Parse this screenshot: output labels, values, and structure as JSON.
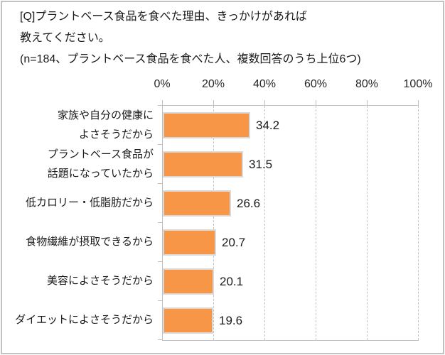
{
  "title": {
    "line1": "[Q]プラントベース食品を食べた理由、きっかけがあれば",
    "line2": "教えてください。",
    "note": "(n=184、プラントベース食品を食べた人、複数回答のうち上位6つ)"
  },
  "chart_data": {
    "type": "bar",
    "orientation": "horizontal",
    "title": "",
    "xlabel": "",
    "ylabel": "",
    "x_axis": {
      "tick_labels": [
        "0%",
        "20%",
        "40%",
        "60%",
        "80%",
        "100%"
      ],
      "min": 0,
      "max": 100,
      "gridlines": "dashed-vertical",
      "position": "top"
    },
    "categories": [
      [
        "家族や自分の健康に",
        "よさそうだから"
      ],
      [
        "プラントベース食品が",
        "話題になっていたから"
      ],
      [
        "低カロリー・低脂肪だから"
      ],
      [
        "食物繊維が摂取できるから"
      ],
      [
        "美容によさそうだから"
      ],
      [
        "ダイエットによさそうだから"
      ]
    ],
    "values": [
      34.2,
      31.5,
      26.6,
      20.7,
      20.1,
      19.6
    ],
    "value_labels": [
      "34.2",
      "31.5",
      "26.6",
      "20.7",
      "20.1",
      "19.6"
    ],
    "legend_position": "none",
    "colors": {
      "bar_fill": "#F79646",
      "bar_border": "#D9D9D9",
      "grid": "#BFBFBF",
      "text": "#1A1A1A",
      "frame_border": "#C2C2C2"
    }
  }
}
